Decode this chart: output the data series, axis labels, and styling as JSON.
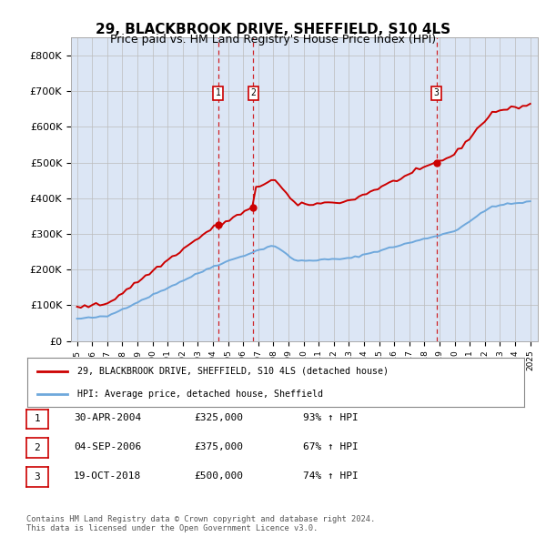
{
  "title1": "29, BLACKBROOK DRIVE, SHEFFIELD, S10 4LS",
  "title2": "Price paid vs. HM Land Registry's House Price Index (HPI)",
  "ylim": [
    0,
    850000
  ],
  "yticks": [
    0,
    100000,
    200000,
    300000,
    400000,
    500000,
    600000,
    700000,
    800000
  ],
  "ytick_labels": [
    "£0",
    "£100K",
    "£200K",
    "£300K",
    "£400K",
    "£500K",
    "£600K",
    "£700K",
    "£800K"
  ],
  "hpi_color": "#6fa8dc",
  "price_color": "#cc0000",
  "vline_color": "#cc0000",
  "background_color": "#dce6f5",
  "sale_year_floats": [
    2004.33,
    2006.67,
    2018.79
  ],
  "sale_prices": [
    325000,
    375000,
    500000
  ],
  "sale_labels": [
    "1",
    "2",
    "3"
  ],
  "legend_label_price": "29, BLACKBROOK DRIVE, SHEFFIELD, S10 4LS (detached house)",
  "legend_label_hpi": "HPI: Average price, detached house, Sheffield",
  "table_rows": [
    [
      "1",
      "30-APR-2004",
      "£325,000",
      "93% ↑ HPI"
    ],
    [
      "2",
      "04-SEP-2006",
      "£375,000",
      "67% ↑ HPI"
    ],
    [
      "3",
      "19-OCT-2018",
      "£500,000",
      "74% ↑ HPI"
    ]
  ],
  "footer": "Contains HM Land Registry data © Crown copyright and database right 2024.\nThis data is licensed under the Open Government Licence v3.0.",
  "title1_fontsize": 11,
  "title2_fontsize": 9
}
